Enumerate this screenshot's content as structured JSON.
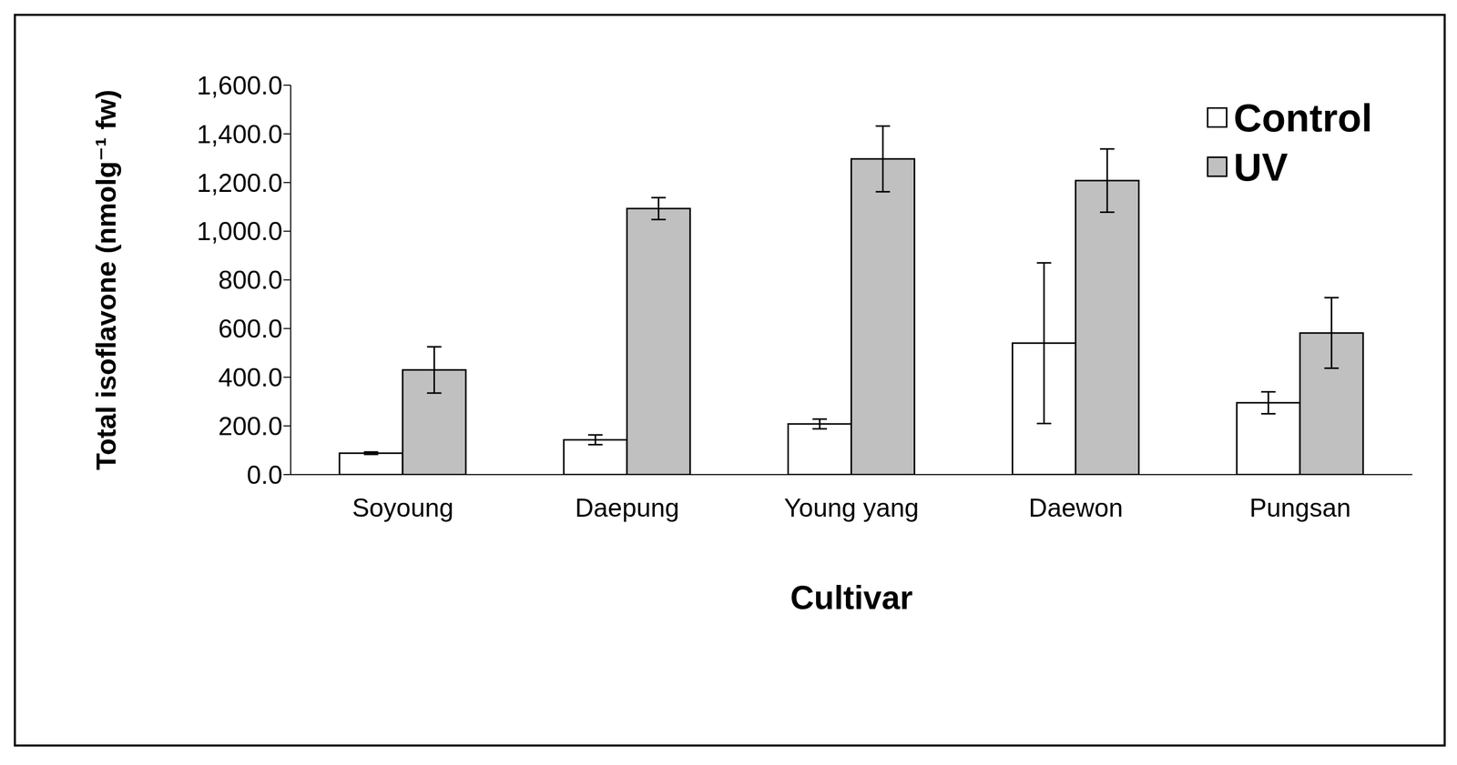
{
  "chart_data": {
    "type": "bar",
    "x_label": "Cultivar",
    "y_label": "Total isoflavone (nmolg⁻¹ fw)",
    "categories": [
      "Soyoung",
      "Daepung",
      "Young yang",
      "Daewon",
      "Pungsan"
    ],
    "series": [
      {
        "name": "Control",
        "color": "#ffffff",
        "values": [
          88,
          143,
          208,
          540,
          295
        ],
        "errors": [
          5,
          20,
          20,
          330,
          45
        ]
      },
      {
        "name": "UV",
        "color": "#c0c0c0",
        "values": [
          430,
          1093,
          1297,
          1208,
          582
        ],
        "errors": [
          95,
          45,
          135,
          130,
          145
        ]
      }
    ],
    "ylim": [
      0,
      1600
    ],
    "yticks": [
      {
        "value": 0,
        "label": "0.0"
      },
      {
        "value": 200,
        "label": "200.0"
      },
      {
        "value": 400,
        "label": "400.0"
      },
      {
        "value": 600,
        "label": "600.0"
      },
      {
        "value": 800,
        "label": "800.0"
      },
      {
        "value": 1000,
        "label": "1,000.0"
      },
      {
        "value": 1200,
        "label": "1,200.0"
      },
      {
        "value": 1400,
        "label": "1,400.0"
      },
      {
        "value": 1600,
        "label": "1,600.0"
      }
    ],
    "grid": false,
    "legend": "upper right"
  }
}
